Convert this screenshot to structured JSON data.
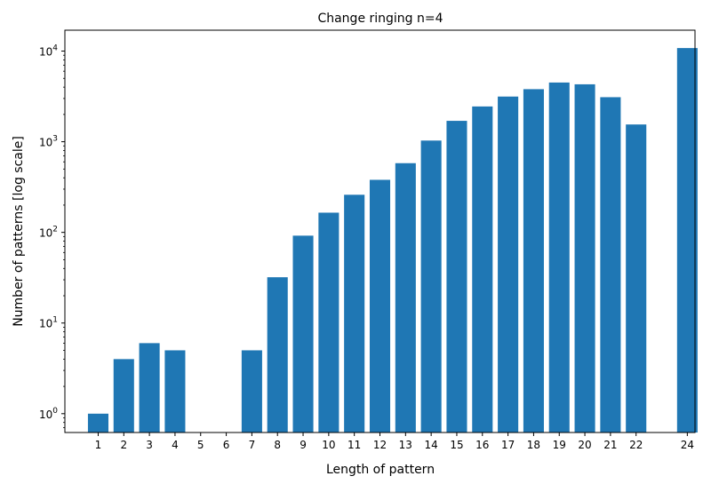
{
  "chart_data": {
    "type": "bar",
    "title": "Change ringing n=4",
    "xlabel": "Length of pattern",
    "ylabel": "Number of patterns [log scale]",
    "yscale": "log",
    "ylim": [
      0.62,
      17000
    ],
    "xlim": [
      -0.3,
      24.3
    ],
    "grid": false,
    "legend": "none",
    "bar_color": "#1f77b4",
    "x": [
      1,
      2,
      3,
      4,
      5,
      6,
      7,
      8,
      9,
      10,
      11,
      12,
      13,
      14,
      15,
      16,
      17,
      18,
      19,
      20,
      21,
      22,
      24
    ],
    "values": [
      1,
      4,
      6,
      5,
      0,
      0,
      5,
      32,
      92,
      165,
      260,
      380,
      580,
      1030,
      1700,
      2450,
      3150,
      3800,
      4500,
      4300,
      3100,
      1550,
      10800
    ],
    "x_tick_labels": [
      "1",
      "2",
      "3",
      "4",
      "5",
      "6",
      "7",
      "8",
      "9",
      "10",
      "11",
      "12",
      "13",
      "14",
      "15",
      "16",
      "17",
      "18",
      "19",
      "20",
      "21",
      "22",
      "24"
    ],
    "y_ticks": [
      {
        "base": "10",
        "exp": "0",
        "value": 1
      },
      {
        "base": "10",
        "exp": "1",
        "value": 10
      },
      {
        "base": "10",
        "exp": "2",
        "value": 100
      },
      {
        "base": "10",
        "exp": "3",
        "value": 1000
      },
      {
        "base": "10",
        "exp": "4",
        "value": 10000
      }
    ]
  }
}
